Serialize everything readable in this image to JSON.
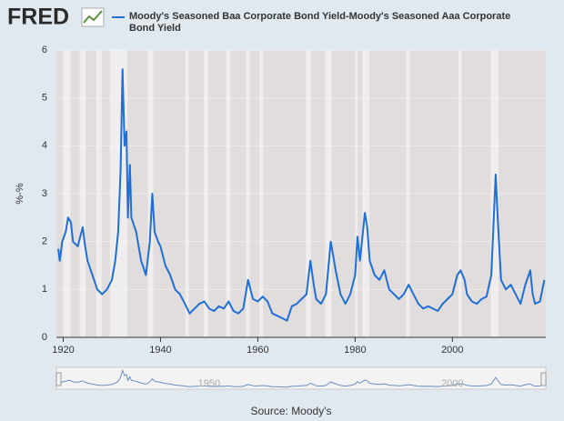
{
  "logo": "FRED",
  "chart_data": {
    "type": "line",
    "series": [
      {
        "name": "Moody's Seasoned Baa Corporate Bond Yield-Moody's Seasoned Aaa Corporate Bond Yield",
        "color": "#1f6fd6",
        "values": [
          1.85,
          1.6,
          2.0,
          2.2,
          2.5,
          2.4,
          2.0,
          1.9,
          2.3,
          1.9,
          1.6,
          1.3,
          1.0,
          0.9,
          1.0,
          1.2,
          1.6,
          2.2,
          3.5,
          5.6,
          4.0,
          4.3,
          2.5,
          3.6,
          2.5,
          2.2,
          1.6,
          1.3,
          2.0,
          3.0,
          2.2,
          2.0,
          1.9,
          1.5,
          1.3,
          1.0,
          0.9,
          0.7,
          0.5,
          0.6,
          0.7,
          0.75,
          0.6,
          0.55,
          0.65,
          0.6,
          0.75,
          0.55,
          0.5,
          0.6,
          1.2,
          0.8,
          0.75,
          0.85,
          0.75,
          0.5,
          0.45,
          0.4,
          0.35,
          0.65,
          0.7,
          0.8,
          0.9,
          1.6,
          1.1,
          0.8,
          0.7,
          0.9,
          2.0,
          1.7,
          1.4,
          0.9,
          0.7,
          0.9,
          1.3,
          2.1,
          1.6,
          2.6,
          2.3,
          1.6,
          1.3,
          1.2,
          1.4,
          1.0,
          0.9,
          0.8,
          0.9,
          1.1,
          0.9,
          0.7,
          0.6,
          0.65,
          0.6,
          0.55,
          0.7,
          0.8,
          0.9,
          1.3,
          1.4,
          1.2,
          0.9,
          0.75,
          0.7,
          0.8,
          0.85,
          1.3,
          3.4,
          2.5,
          1.2,
          1.0,
          1.1,
          0.9,
          0.7,
          1.1,
          1.4,
          0.9,
          0.7,
          0.75,
          1.2
        ]
      }
    ],
    "x": [
      1919,
      1919.3,
      1919.8,
      1920.5,
      1921,
      1921.6,
      1922,
      1923,
      1924,
      1924.5,
      1925,
      1926,
      1927,
      1928,
      1929,
      1930,
      1930.7,
      1931.3,
      1931.8,
      1932.2,
      1932.6,
      1933,
      1933.3,
      1933.7,
      1934,
      1935,
      1936,
      1937,
      1937.8,
      1938.3,
      1938.8,
      1939.5,
      1940,
      1941,
      1942,
      1943,
      1944,
      1945,
      1946,
      1947,
      1948,
      1949,
      1950,
      1951,
      1952,
      1953,
      1954,
      1955,
      1956,
      1957,
      1958,
      1959,
      1960,
      1961,
      1962,
      1963,
      1964,
      1965,
      1966,
      1967,
      1968,
      1969,
      1970,
      1970.8,
      1971.5,
      1972,
      1973,
      1974,
      1975,
      1975.5,
      1976,
      1977,
      1978,
      1979,
      1980,
      1980.5,
      1981,
      1982,
      1982.5,
      1983,
      1984,
      1985,
      1986,
      1987,
      1988,
      1989,
      1990,
      1991,
      1992,
      1993,
      1994,
      1995,
      1996,
      1997,
      1998,
      1999,
      2000,
      2001,
      2001.7,
      2002.5,
      2003,
      2004,
      2005,
      2006,
      2007,
      2008,
      2008.9,
      2009.3,
      2010,
      2011,
      2012,
      2013,
      2014,
      2015,
      2016,
      2016.5,
      2017,
      2018,
      2018.9
    ],
    "recessions": [
      [
        1920,
        1921.5
      ],
      [
        1923.4,
        1924.6
      ],
      [
        1926.8,
        1927.9
      ],
      [
        1929.6,
        1933.2
      ],
      [
        1937.4,
        1938.5
      ],
      [
        1945.1,
        1945.8
      ],
      [
        1948.9,
        1949.8
      ],
      [
        1953.5,
        1954.4
      ],
      [
        1957.6,
        1958.3
      ],
      [
        1960.3,
        1961.1
      ],
      [
        1969.9,
        1970.9
      ],
      [
        1973.9,
        1975.2
      ],
      [
        1980,
        1980.5
      ],
      [
        1981.5,
        1982.9
      ],
      [
        1990.5,
        1991.2
      ],
      [
        2001.2,
        2001.9
      ],
      [
        2007.9,
        2009.5
      ]
    ],
    "y_label": "%-%",
    "xlim": [
      1918.6,
      2019.2
    ],
    "ylim": [
      0,
      6
    ],
    "xticks": [
      1920,
      1940,
      1960,
      1980,
      2000
    ],
    "yticks": [
      0,
      1,
      2,
      3,
      4,
      5,
      6
    ],
    "navigator_ticks": [
      1950,
      2000
    ],
    "source": "Source: Moody's"
  }
}
